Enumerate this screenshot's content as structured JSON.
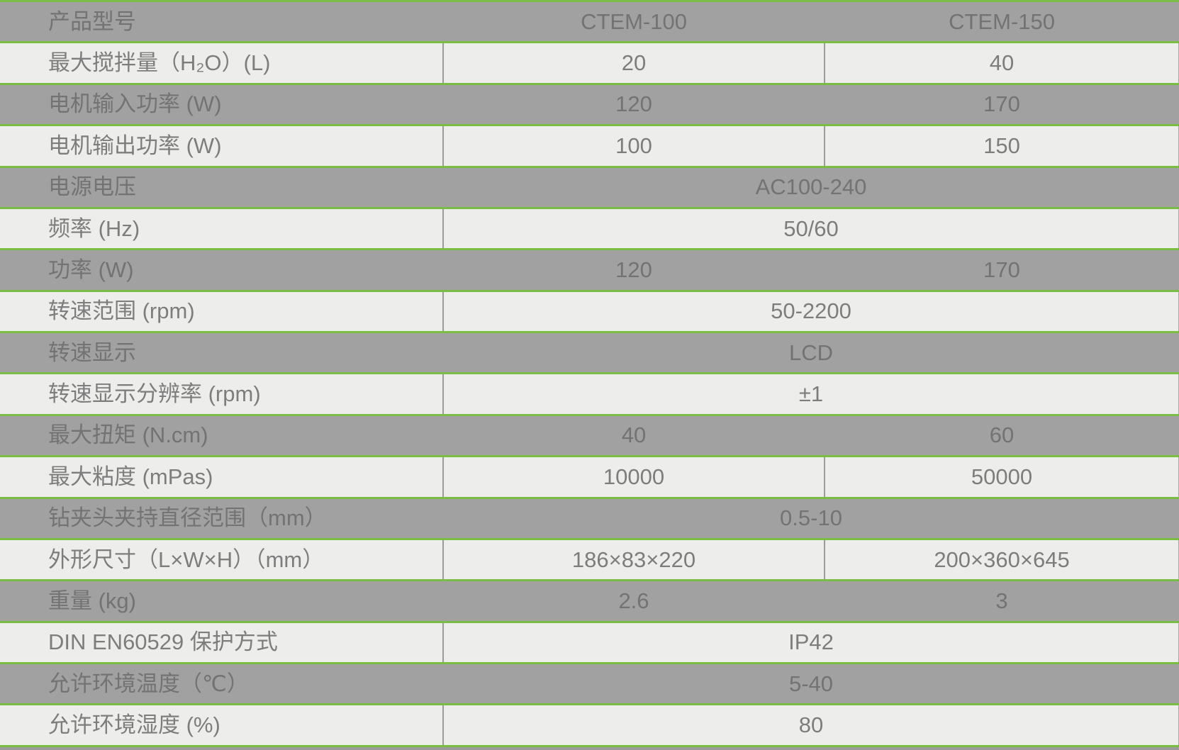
{
  "colors": {
    "border_green": "#79bd44",
    "row_dark_bg": "#a1a1a1",
    "row_light_bg": "#edeeec",
    "divider_gray": "#9b9b9b",
    "text_gray": "#777777"
  },
  "table": {
    "rows": [
      {
        "label": "产品型号",
        "values": [
          "CTEM-100",
          "CTEM-150"
        ]
      },
      {
        "label": "最大搅拌量（H₂O）(L)",
        "values": [
          "20",
          "40"
        ]
      },
      {
        "label": "电机输入功率 (W)",
        "values": [
          "120",
          "170"
        ]
      },
      {
        "label": "电机输出功率 (W)",
        "values": [
          "100",
          "150"
        ]
      },
      {
        "label": "电源电压",
        "values": [
          "AC100-240"
        ]
      },
      {
        "label": "频率 (Hz)",
        "values": [
          "50/60"
        ]
      },
      {
        "label": "功率 (W)",
        "values": [
          "120",
          "170"
        ]
      },
      {
        "label": "转速范围 (rpm)",
        "values": [
          "50-2200"
        ]
      },
      {
        "label": "转速显示",
        "values": [
          "LCD"
        ]
      },
      {
        "label": "转速显示分辨率 (rpm)",
        "values": [
          "±1"
        ]
      },
      {
        "label": "最大扭矩 (N.cm)",
        "values": [
          "40",
          "60"
        ]
      },
      {
        "label": "最大粘度 (mPas)",
        "values": [
          "10000",
          "50000"
        ]
      },
      {
        "label": "钻夹头夹持直径范围（mm）",
        "values": [
          "0.5-10"
        ]
      },
      {
        "label": "外形尺寸（L×W×H）（mm）",
        "values": [
          "186×83×220",
          "200×360×645"
        ]
      },
      {
        "label": "重量 (kg)",
        "values": [
          "2.6",
          "3"
        ]
      },
      {
        "label": "DIN EN60529 保护方式",
        "values": [
          "IP42"
        ]
      },
      {
        "label": "允许环境温度（℃）",
        "values": [
          "5-40"
        ]
      },
      {
        "label": "允许环境湿度 (%)",
        "values": [
          "80"
        ]
      }
    ]
  }
}
